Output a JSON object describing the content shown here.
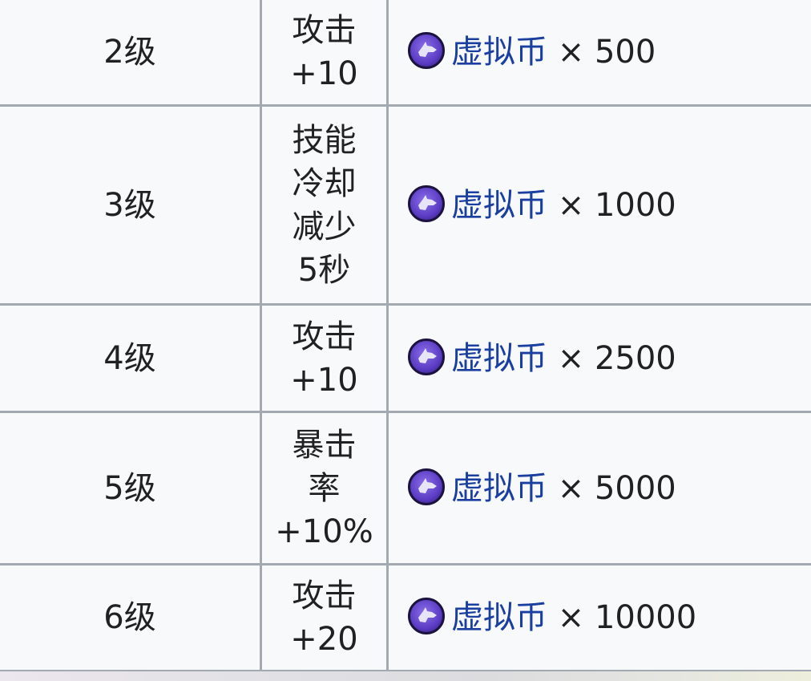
{
  "rows": [
    {
      "level": "2级",
      "effect": [
        "攻击",
        "+10"
      ],
      "currency": "虚拟币",
      "multiplier": "×",
      "amount": "500"
    },
    {
      "level": "3级",
      "effect": [
        "技能",
        "冷却",
        "减少",
        "5秒"
      ],
      "currency": "虚拟币",
      "multiplier": "×",
      "amount": "1000"
    },
    {
      "level": "4级",
      "effect": [
        "攻击",
        "+10"
      ],
      "currency": "虚拟币",
      "multiplier": "×",
      "amount": "2500"
    },
    {
      "level": "5级",
      "effect": [
        "暴击",
        "率",
        "+10%"
      ],
      "currency": "虚拟币",
      "multiplier": "×",
      "amount": "5000"
    },
    {
      "level": "6级",
      "effect": [
        "攻击",
        "+20"
      ],
      "currency": "虚拟币",
      "multiplier": "×",
      "amount": "10000"
    }
  ],
  "icons": {
    "coin": "wolf-coin-icon"
  },
  "colors": {
    "link": "#1a3fa0",
    "border": "#a2a9b1",
    "background": "#f8f9fa"
  }
}
